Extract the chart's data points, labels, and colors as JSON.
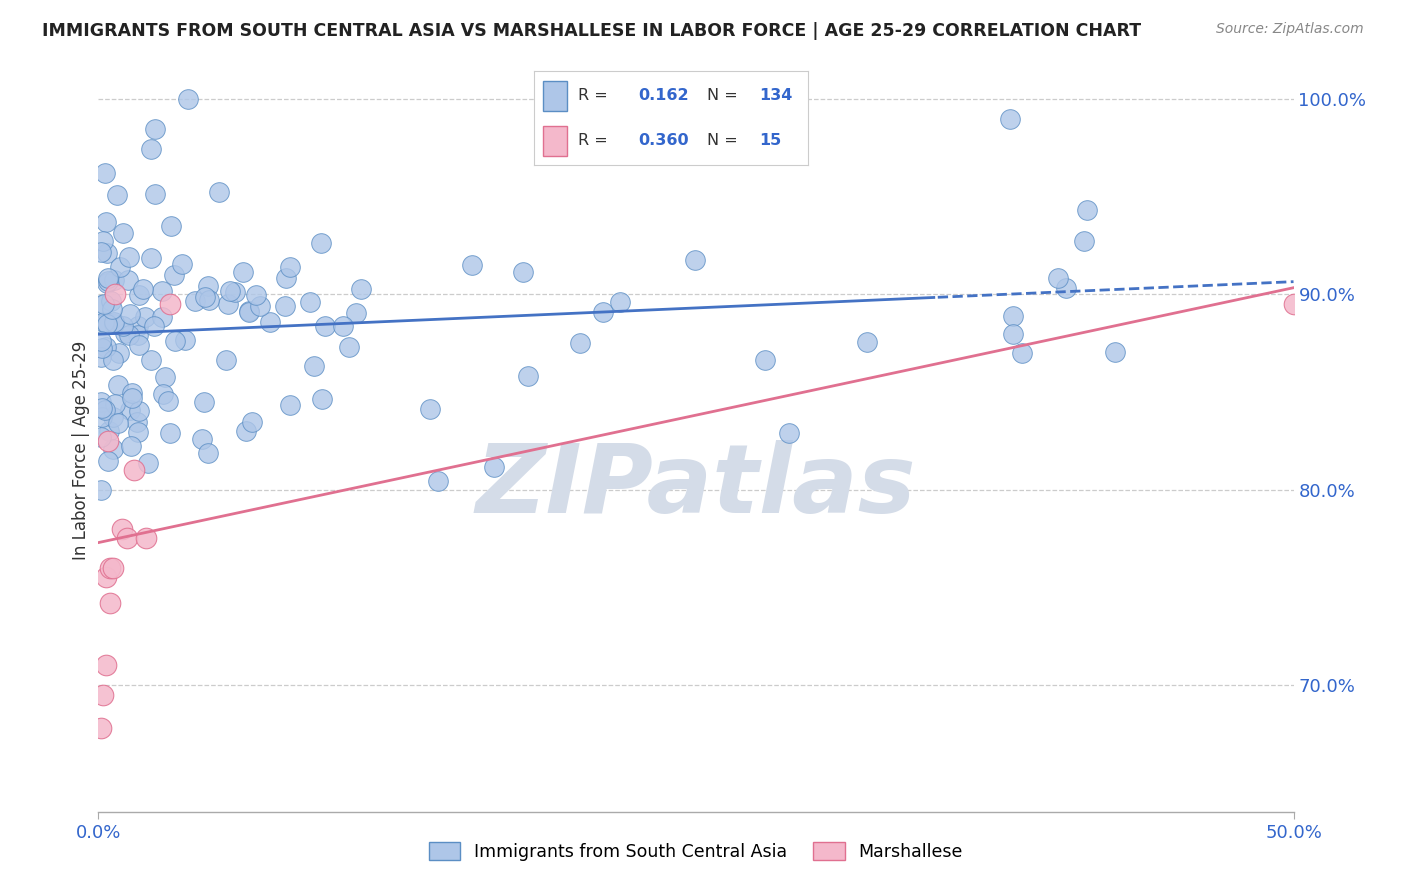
{
  "title": "IMMIGRANTS FROM SOUTH CENTRAL ASIA VS MARSHALLESE IN LABOR FORCE | AGE 25-29 CORRELATION CHART",
  "source": "Source: ZipAtlas.com",
  "ylabel": "In Labor Force | Age 25-29",
  "blue_R": 0.162,
  "blue_N": 134,
  "pink_R": 0.36,
  "pink_N": 15,
  "blue_color": "#aec6e8",
  "blue_edge_color": "#5b8ec4",
  "blue_line_color": "#4472c4",
  "pink_color": "#f4b8cb",
  "pink_edge_color": "#e07090",
  "pink_line_color": "#e07090",
  "watermark_color": "#d4dce8",
  "title_color": "#222222",
  "axis_color": "#3366cc",
  "xlim": [
    0.0,
    0.5
  ],
  "ylim": [
    0.635,
    1.005
  ],
  "yticks": [
    0.7,
    0.8,
    0.9,
    1.0
  ],
  "ytick_labels": [
    "70.0%",
    "80.0%",
    "90.0%",
    "100.0%"
  ],
  "blue_seed": 42,
  "pink_seed": 99
}
